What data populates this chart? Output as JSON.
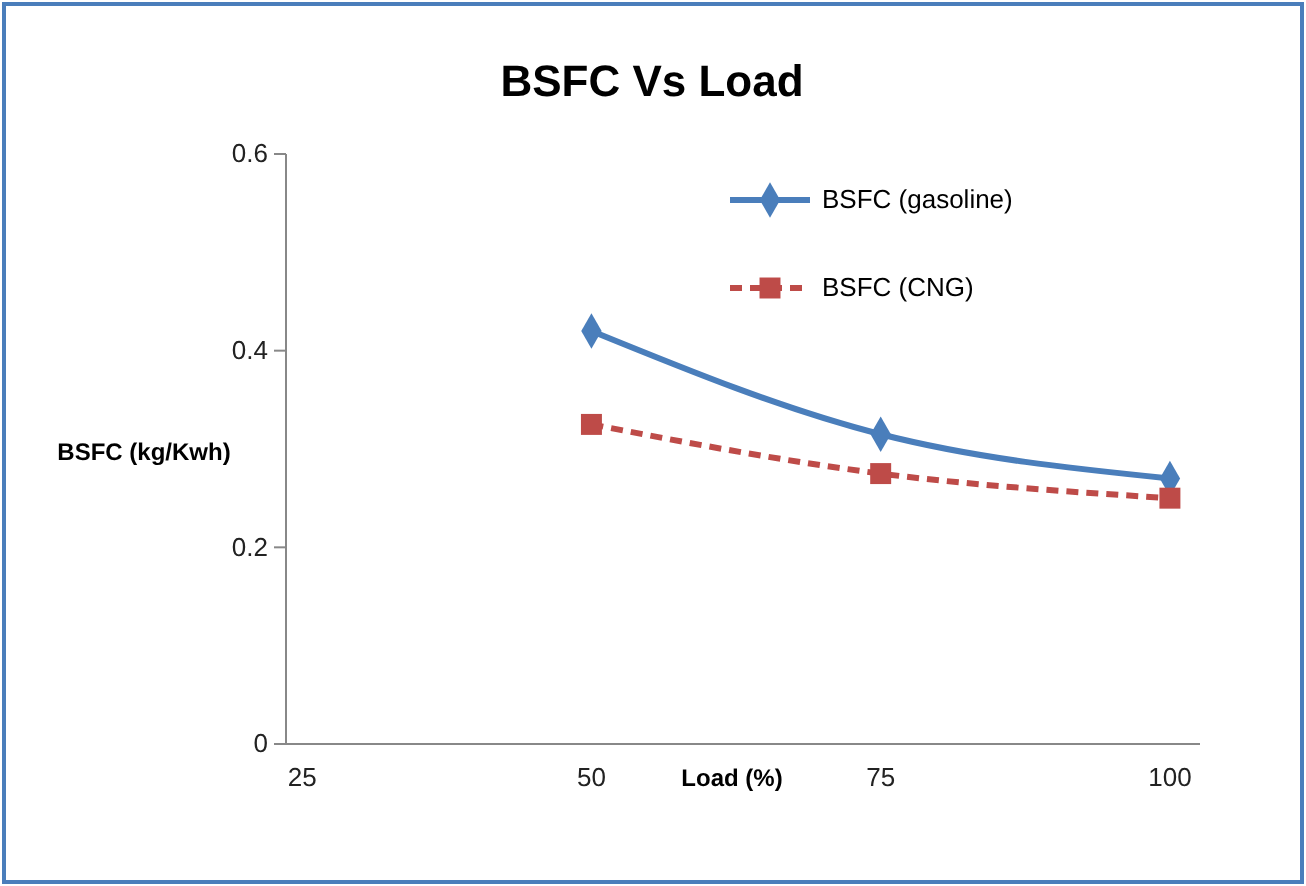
{
  "chart_data": {
    "type": "line",
    "title": "BSFC Vs Load",
    "xlabel": "Load (%)",
    "ylabel": "BSFC (kg/Kwh)",
    "x": [
      50,
      75,
      100
    ],
    "xlim": [
      23.6,
      102.6
    ],
    "xticks": [
      25,
      50,
      75,
      100
    ],
    "ylim": [
      0,
      0.6
    ],
    "yticks": [
      0,
      0.2,
      0.4,
      0.6
    ],
    "grid": false,
    "legend": "top right",
    "series": [
      {
        "name": "BSFC (gasoline)",
        "color": "#4a7ebb",
        "values": [
          0.42,
          0.315,
          0.27
        ],
        "marker": "diamond",
        "line_style": "solid"
      },
      {
        "name": "BSFC (CNG)",
        "color": "#be4b48",
        "values": [
          0.325,
          0.275,
          0.25
        ],
        "marker": "square",
        "line_style": "dashed"
      }
    ]
  }
}
